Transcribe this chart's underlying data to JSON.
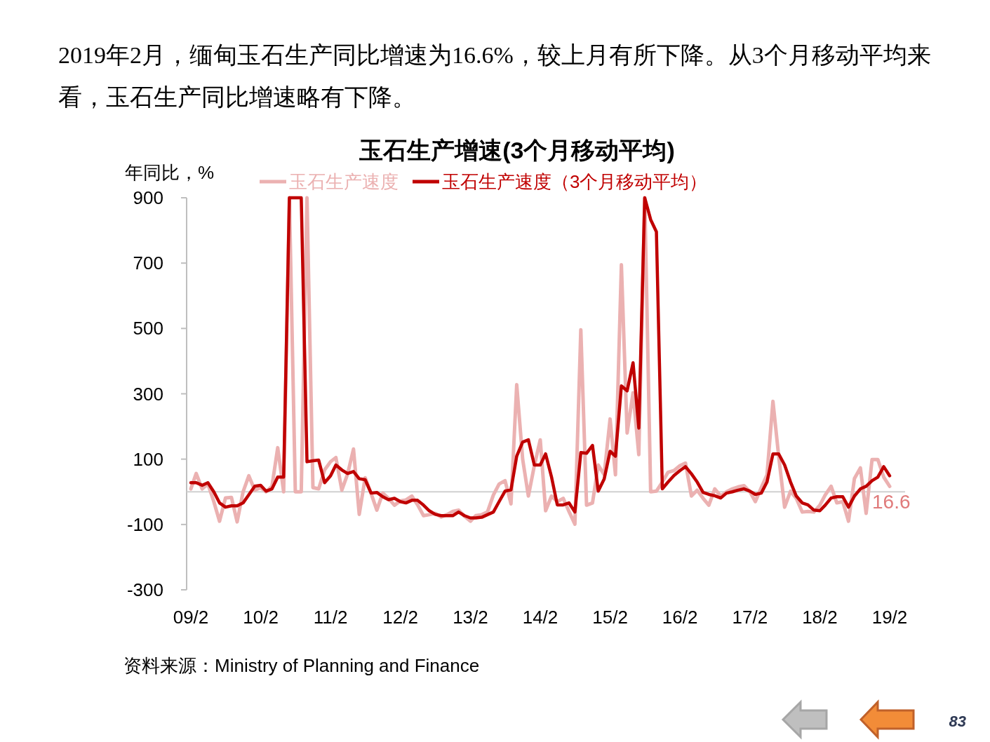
{
  "chart_data": {
    "type": "line",
    "subtitle": "2019年2月，缅甸玉石生产同比增速为16.6%，较上月有所下降。从3个月移动平均来看，玉石生产同比增速略有下降。",
    "title": "玉石生产增速(3个月移动平均)",
    "ylabel": "年同比，%",
    "x": [
      "2009-02",
      "2009-03",
      "2009-04",
      "2009-05",
      "2009-06",
      "2009-07",
      "2009-08",
      "2009-09",
      "2009-10",
      "2009-11",
      "2009-12",
      "2010-01",
      "2010-02",
      "2010-03",
      "2010-04",
      "2010-05",
      "2010-06",
      "2010-07",
      "2010-08",
      "2010-09",
      "2010-10",
      "2010-11",
      "2010-12",
      "2011-01",
      "2011-02",
      "2011-03",
      "2011-04",
      "2011-05",
      "2011-06",
      "2011-07",
      "2011-08",
      "2011-09",
      "2011-10",
      "2011-11",
      "2011-12",
      "2012-01",
      "2012-02",
      "2012-03",
      "2012-04",
      "2012-05",
      "2012-06",
      "2012-07",
      "2012-08",
      "2012-09",
      "2012-10",
      "2012-11",
      "2012-12",
      "2013-01",
      "2013-02",
      "2013-03",
      "2013-04",
      "2013-05",
      "2013-06",
      "2013-07",
      "2013-08",
      "2013-09",
      "2013-10",
      "2013-11",
      "2013-12",
      "2014-01",
      "2014-02",
      "2014-03",
      "2014-04",
      "2014-05",
      "2014-06",
      "2014-07",
      "2014-08",
      "2014-09",
      "2014-10",
      "2014-11",
      "2014-12",
      "2015-01",
      "2015-02",
      "2015-03",
      "2015-04",
      "2015-05",
      "2015-06",
      "2015-07",
      "2015-08",
      "2015-09",
      "2015-10",
      "2015-11",
      "2015-12",
      "2016-01",
      "2016-02",
      "2016-03",
      "2016-04",
      "2016-05",
      "2016-06",
      "2016-07",
      "2016-08",
      "2016-09",
      "2016-10",
      "2016-11",
      "2016-12",
      "2017-01",
      "2017-02",
      "2017-03",
      "2017-04",
      "2017-05",
      "2017-06",
      "2017-07",
      "2017-08",
      "2017-09",
      "2017-10",
      "2017-11",
      "2017-12",
      "2018-01",
      "2018-02",
      "2018-03",
      "2018-04",
      "2018-05",
      "2018-06",
      "2018-07",
      "2018-08",
      "2018-09",
      "2018-10",
      "2018-11",
      "2018-12",
      "2019-01",
      "2019-02"
    ],
    "series": [
      {
        "name": "玉石生产速度",
        "color": "#ebb1b1",
        "values": [
          9,
          56,
          9,
          24,
          -30,
          -90,
          -19,
          -17,
          -92,
          0,
          49,
          5,
          13,
          0,
          17,
          135,
          0,
          900,
          0,
          0,
          900,
          13,
          9,
          67,
          92,
          105,
          5,
          54,
          131,
          -69,
          43,
          -5,
          -56,
          -4,
          -20,
          -41,
          -28,
          -25,
          -13,
          -40,
          -73,
          -70,
          -66,
          -77,
          -70,
          -60,
          -56,
          -75,
          -90,
          -73,
          -70,
          -62,
          -10,
          24,
          34,
          -37,
          328,
          100,
          -13,
          80,
          159,
          -58,
          -13,
          -30,
          -20,
          -60,
          -99,
          496,
          -41,
          -34,
          82,
          52,
          223,
          52,
          695,
          180,
          303,
          114,
          900,
          0,
          2,
          30,
          60,
          65,
          80,
          88,
          -13,
          5,
          -20,
          -41,
          9,
          -13,
          0,
          9,
          15,
          19,
          0,
          -30,
          13,
          52,
          277,
          109,
          -47,
          2,
          -20,
          -62,
          -60,
          -62,
          -41,
          -10,
          17,
          -34,
          -30,
          -90,
          41,
          73,
          -66,
          99,
          99,
          45,
          16.6
        ]
      },
      {
        "name": "玉石生产速度（3个月移动平均）",
        "color": "#c00000",
        "values": [
          28,
          28,
          20,
          28,
          0,
          -34,
          -47,
          -43,
          -43,
          -34,
          -9,
          17,
          20,
          2,
          9,
          45,
          45,
          900,
          900,
          900,
          92,
          95,
          97,
          28,
          49,
          82,
          67,
          56,
          62,
          40,
          37,
          -4,
          -2,
          -15,
          -24,
          -20,
          -30,
          -34,
          -26,
          -26,
          -41,
          -58,
          -69,
          -73,
          -73,
          -73,
          -62,
          -73,
          -80,
          -80,
          -78,
          -70,
          -62,
          -30,
          2,
          6,
          109,
          152,
          159,
          82,
          82,
          116,
          45,
          -40,
          -40,
          -34,
          -62,
          120,
          118,
          142,
          2,
          39,
          124,
          109,
          324,
          309,
          395,
          195,
          900,
          833,
          796,
          9,
          30,
          50,
          65,
          77,
          55,
          30,
          -2,
          -8,
          -12,
          -19,
          -4,
          0,
          5,
          9,
          2,
          -8,
          -4,
          30,
          116,
          116,
          82,
          30,
          -13,
          -34,
          -40,
          -56,
          -58,
          -41,
          -19,
          -15,
          -15,
          -47,
          -13,
          9,
          17,
          34,
          45,
          77,
          49
        ]
      }
    ],
    "xlim": [
      "2009-02",
      "2019-02"
    ],
    "xticks": [
      {
        "value": "2009-02",
        "label": "09/2"
      },
      {
        "value": "2010-02",
        "label": "10/2"
      },
      {
        "value": "2011-02",
        "label": "11/2"
      },
      {
        "value": "2012-02",
        "label": "12/2"
      },
      {
        "value": "2013-02",
        "label": "13/2"
      },
      {
        "value": "2014-02",
        "label": "14/2"
      },
      {
        "value": "2015-02",
        "label": "15/2"
      },
      {
        "value": "2016-02",
        "label": "16/2"
      },
      {
        "value": "2017-02",
        "label": "17/2"
      },
      {
        "value": "2018-02",
        "label": "18/2"
      },
      {
        "value": "2019-02",
        "label": "19/2"
      }
    ],
    "ylim": [
      -300,
      900
    ],
    "yticks": [
      -300,
      -100,
      100,
      300,
      500,
      700,
      900
    ],
    "ref_lines": [
      {
        "axis": "y",
        "value": 0,
        "color": "#d0d0d0"
      }
    ],
    "annotations": [
      {
        "text": "16.6",
        "x": "2019-02",
        "y": 16.6
      },
      "资料来源：Ministry of Planning and Finance",
      "83"
    ],
    "legend": "top",
    "grid": false,
    "marker": "none",
    "line_style": "solid"
  }
}
